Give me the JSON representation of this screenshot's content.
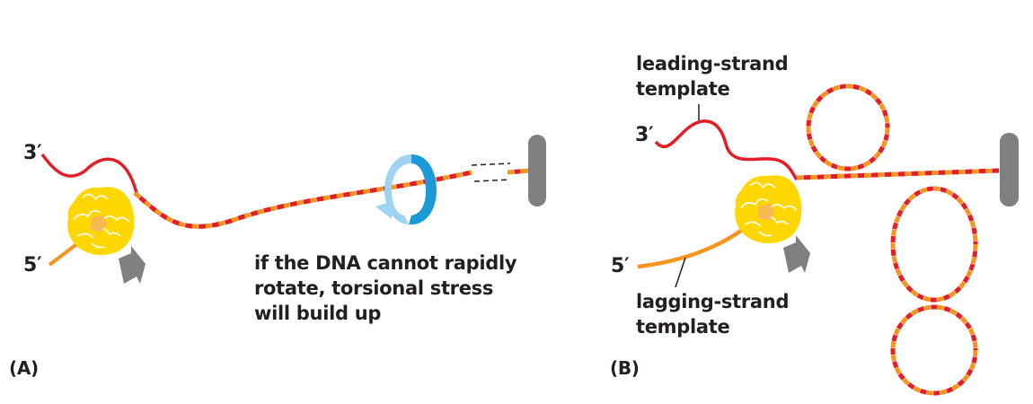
{
  "panel_a": {
    "label": "(A)",
    "three_prime": "3′",
    "five_prime": "5′",
    "annotation": [
      "if the DNA cannot rapidly",
      "rotate, torsional stress",
      "will build up"
    ]
  },
  "panel_b": {
    "label": "(B)",
    "three_prime": "3′",
    "five_prime": "5′",
    "leading_label": [
      "leading-strand",
      "template"
    ],
    "lagging_label": [
      "lagging-strand",
      "template"
    ]
  },
  "colors": {
    "red_strand": "#e31e24",
    "orange_strand": "#f7941d",
    "dark_strand": "#a6191d",
    "helicase": "#ffd700",
    "anchor": "#808080",
    "rotation_light": "#9fd3f2",
    "rotation_dark": "#1a9ad6"
  }
}
